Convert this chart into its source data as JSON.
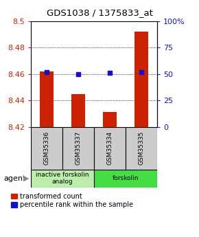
{
  "title": "GDS1038 / 1375833_at",
  "samples": [
    "GSM35336",
    "GSM35337",
    "GSM35334",
    "GSM35335"
  ],
  "bar_values": [
    8.462,
    8.445,
    8.431,
    8.492
  ],
  "percentile_values": [
    52,
    50,
    51,
    52
  ],
  "ylim_left": [
    8.42,
    8.5
  ],
  "ylim_right": [
    0,
    100
  ],
  "yticks_left": [
    8.42,
    8.44,
    8.46,
    8.48,
    8.5
  ],
  "yticks_right": [
    0,
    25,
    50,
    75,
    100
  ],
  "bar_color": "#cc2200",
  "dot_color": "#1111cc",
  "agent_groups": [
    {
      "label": "inactive forskolin\nanalog",
      "color": "#bbeeaa",
      "span": [
        0,
        2
      ]
    },
    {
      "label": "forskolin",
      "color": "#44dd44",
      "span": [
        2,
        4
      ]
    }
  ],
  "left_axis_color": "#cc2200",
  "right_axis_color": "#1111cc",
  "legend_red_label": "transformed count",
  "legend_blue_label": "percentile rank within the sample",
  "agent_label": "agent",
  "grid_color": "#000000",
  "sample_box_color": "#cccccc",
  "bar_width": 0.45
}
